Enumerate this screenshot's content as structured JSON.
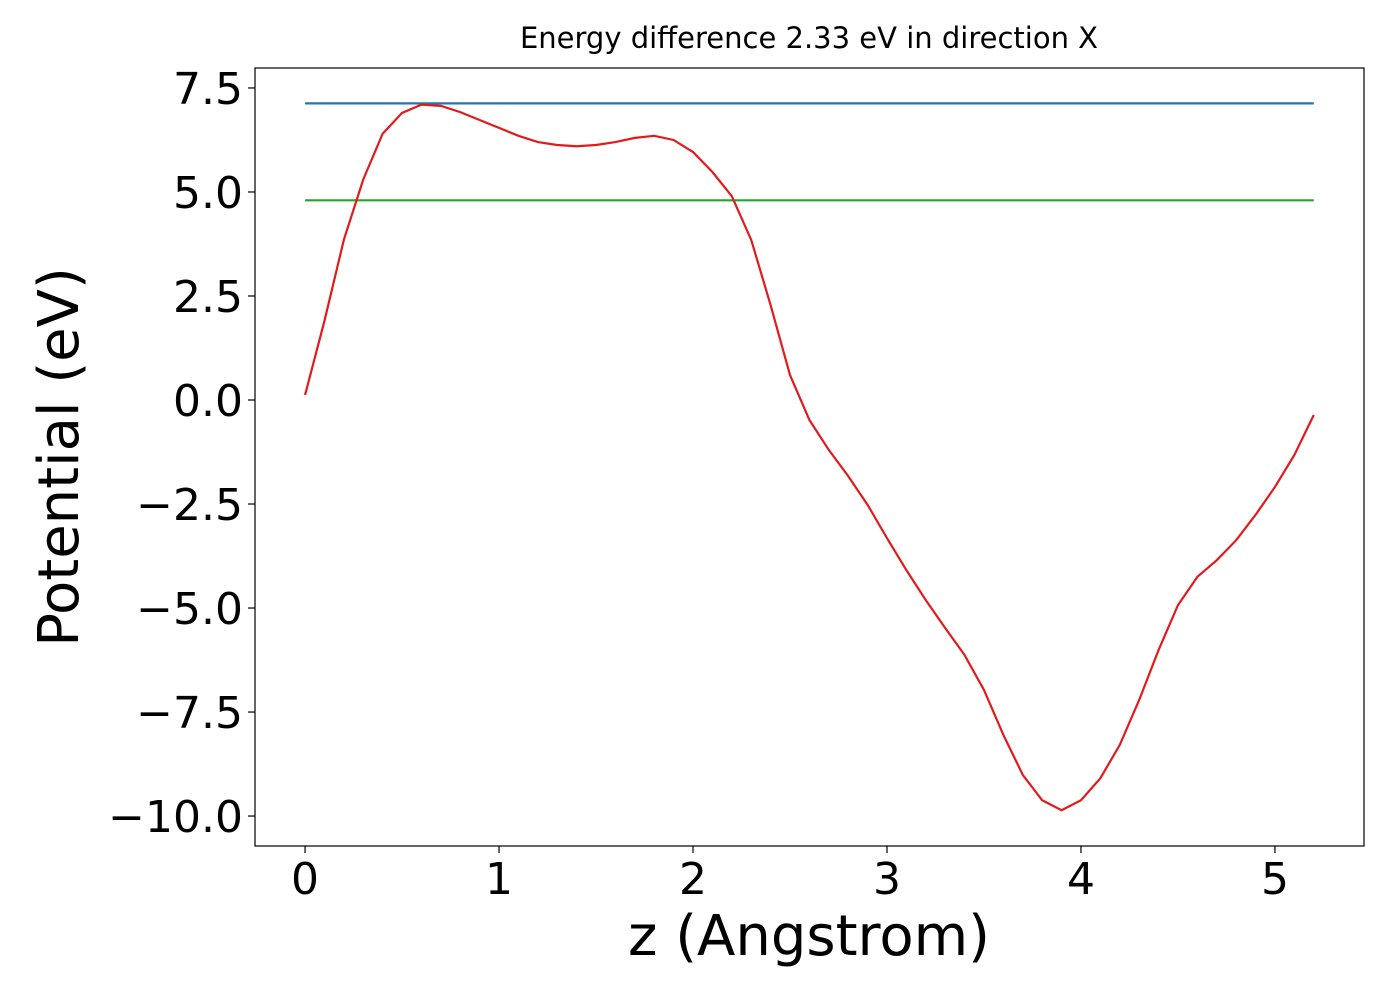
{
  "chart_data": {
    "type": "line",
    "title": "Energy difference 2.33 eV in direction X",
    "x_label": "z (Angstrom)",
    "y_label": "Potential (eV)",
    "xlim": [
      -0.258,
      5.459
    ],
    "ylim": [
      -10.72,
      7.98
    ],
    "xticks": [
      0,
      1,
      2,
      3,
      4,
      5
    ],
    "yticks": [
      {
        "value": -10,
        "label": "−10.0"
      },
      {
        "value": -7.5,
        "label": "−7.5"
      },
      {
        "value": -5,
        "label": "−5.0"
      },
      {
        "value": -2.5,
        "label": "−2.5"
      },
      {
        "value": 0,
        "label": "0.0"
      },
      2.5,
      {
        "value": 5,
        "label": "5.0"
      },
      7.5
    ],
    "series": [
      {
        "color": "#1f77b4",
        "x": [
          0,
          5.2
        ],
        "values": [
          7.13,
          7.13
        ]
      },
      {
        "color": "#2ca02c",
        "x": [
          0,
          5.2
        ],
        "values": [
          4.8,
          4.8
        ]
      },
      {
        "color": "#e31a1c",
        "x": [
          0,
          0.1,
          0.2,
          0.3,
          0.4,
          0.5,
          0.6,
          0.7,
          0.8,
          0.9,
          1.0,
          1.1,
          1.2,
          1.3,
          1.4,
          1.5,
          1.6,
          1.7,
          1.8,
          1.9,
          2.0,
          2.1,
          2.2,
          2.3,
          2.4,
          2.5,
          2.6,
          2.7,
          2.8,
          2.9,
          3.0,
          3.1,
          3.2,
          3.3,
          3.4,
          3.5,
          3.6,
          3.7,
          3.8,
          3.9,
          4.0,
          4.1,
          4.2,
          4.3,
          4.4,
          4.5,
          4.6,
          4.7,
          4.8,
          4.9,
          5.0,
          5.1,
          5.2
        ],
        "values": [
          0.12,
          1.9,
          3.85,
          5.3,
          6.4,
          6.9,
          7.1,
          7.07,
          6.92,
          6.73,
          6.54,
          6.35,
          6.2,
          6.13,
          6.1,
          6.13,
          6.2,
          6.3,
          6.35,
          6.25,
          5.96,
          5.48,
          4.9,
          3.85,
          2.28,
          0.6,
          -0.48,
          -1.2,
          -1.83,
          -2.52,
          -3.32,
          -4.09,
          -4.81,
          -5.48,
          -6.13,
          -6.97,
          -8.05,
          -9.01,
          -9.62,
          -9.86,
          -9.62,
          -9.09,
          -8.29,
          -7.21,
          -6.01,
          -4.93,
          -4.25,
          -3.85,
          -3.37,
          -2.76,
          -2.09,
          -1.32,
          -0.36
        ]
      }
    ]
  }
}
